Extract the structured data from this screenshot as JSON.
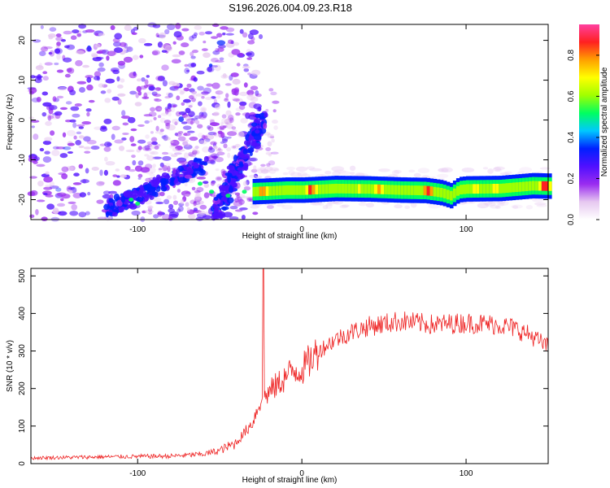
{
  "title": "S196.2026.004.09.23.R18",
  "chart_data": [
    {
      "type": "heatmap",
      "name": "spectrogram",
      "xlabel": "Height of straight line (km)",
      "ylabel": "Frequency (Hz)",
      "xlim": [
        -165,
        150
      ],
      "ylim": [
        -25,
        24
      ],
      "x_ticks": [
        -100,
        0,
        100
      ],
      "y_ticks": [
        -20,
        -10,
        0,
        10,
        20
      ],
      "tick_labels_x": [
        "-100",
        "0",
        "100"
      ],
      "tick_labels_y": [
        "-20",
        "-10",
        "0",
        "10",
        "20"
      ],
      "colorbar": {
        "label": "Normalized spectral amplitude",
        "range": [
          0.0,
          0.95
        ],
        "ticks": [
          0.0,
          0.2,
          0.4,
          0.6,
          0.8
        ],
        "tick_labels": [
          "0.0",
          "0.2",
          "0.4",
          "0.6",
          "0.8"
        ],
        "colors": [
          "#ffffff",
          "#e6c8f0",
          "#9a2cf0",
          "#5010ff",
          "#0020ff",
          "#00c8ff",
          "#00ff60",
          "#a0ff00",
          "#ffff00",
          "#ffa000",
          "#ff2020",
          "#ff40a0"
        ]
      },
      "carrier_trace": {
        "x": [
          -30,
          -20,
          -10,
          0,
          5,
          20,
          40,
          60,
          75,
          85,
          90,
          95,
          100,
          120,
          140,
          150
        ],
        "y": [
          -18,
          -17.8,
          -17.6,
          -17.6,
          -17.5,
          -17.2,
          -17.3,
          -17.6,
          -17.7,
          -18.3,
          -19.0,
          -17.5,
          -17.3,
          -17.2,
          -16.5,
          -16.6
        ],
        "peak_amplitude": 0.9
      },
      "diagonal_features": [
        {
          "x": [
            -120,
            -60
          ],
          "y": [
            -23,
            -11
          ]
        },
        {
          "x": [
            -52,
            -24
          ],
          "y": [
            -23,
            0
          ]
        }
      ]
    },
    {
      "type": "line",
      "name": "snr",
      "xlabel": "Height of straight line (km)",
      "ylabel": "SNR (10 * v/v)",
      "xlim": [
        -165,
        150
      ],
      "ylim": [
        0,
        520
      ],
      "x_ticks": [
        -100,
        0,
        100
      ],
      "y_ticks": [
        0,
        100,
        200,
        300,
        400,
        500
      ],
      "tick_labels_x": [
        "-100",
        "0",
        "100"
      ],
      "tick_labels_y": [
        "0",
        "100",
        "200",
        "300",
        "400",
        "500"
      ],
      "color": "#ee2222",
      "envelope": {
        "x": [
          -165,
          -120,
          -80,
          -60,
          -50,
          -40,
          -30,
          -25,
          -20,
          -15,
          -10,
          -5,
          0,
          10,
          20,
          30,
          40,
          60,
          80,
          100,
          120,
          130,
          140,
          150
        ],
        "y": [
          15,
          18,
          20,
          25,
          35,
          55,
          110,
          170,
          190,
          210,
          230,
          250,
          250,
          300,
          330,
          350,
          365,
          380,
          370,
          375,
          370,
          360,
          340,
          310
        ]
      },
      "spike": {
        "x": -23.5,
        "y": 520
      }
    }
  ]
}
